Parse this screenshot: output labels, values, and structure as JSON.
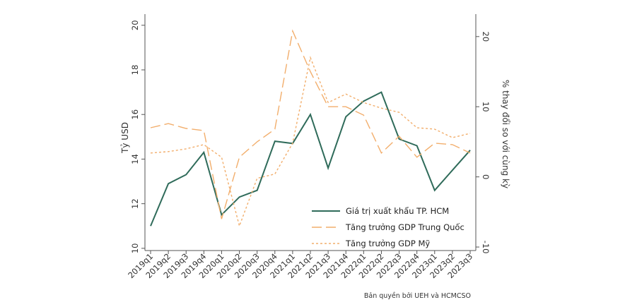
{
  "colors": {
    "hcm": "#2f6b5a",
    "china": "#f2ae6c",
    "us": "#f2ae6c",
    "axis": "#555555",
    "background": "#ffffff"
  },
  "copyright": "Bản quyền bởi UEH và HCMCSO",
  "chart_data": {
    "type": "line",
    "x": [
      "2019q1",
      "2019q2",
      "2019q3",
      "2019q4",
      "2020q1",
      "2020q2",
      "2020q3",
      "2020q4",
      "2021q1",
      "2021q2",
      "2021q3",
      "2021q4",
      "2022q1",
      "2022q2",
      "2022q3",
      "2022q4",
      "2023q1",
      "2023q2",
      "2023q3"
    ],
    "ylabel": "Tỷ USD",
    "y2label": "% thay đổi so với cùng kỳ",
    "ylim": [
      9.9,
      20.5
    ],
    "y2lim": [
      -10.5,
      23.2
    ],
    "yticks": [
      10,
      12,
      14,
      16,
      18,
      20
    ],
    "y2ticks": [
      -10,
      0,
      10,
      20
    ],
    "grid": false,
    "legend_position": "bottom-right",
    "series": [
      {
        "name": "Giá trị xuất khẩu TP. HCM",
        "axis": "left",
        "style": "solid",
        "values": [
          11.0,
          12.9,
          13.3,
          14.3,
          11.5,
          12.3,
          12.6,
          14.8,
          14.7,
          16.0,
          13.6,
          15.9,
          16.6,
          17.0,
          14.9,
          14.6,
          12.6,
          13.5,
          14.4
        ]
      },
      {
        "name": "Tăng trưởng GDP Trung Quốc",
        "axis": "right",
        "style": "long-dash",
        "values": [
          7.0,
          7.6,
          6.9,
          6.6,
          -6.0,
          2.8,
          5.0,
          6.8,
          20.8,
          15.0,
          10.0,
          10.0,
          8.8,
          3.4,
          5.8,
          2.8,
          4.8,
          4.6,
          3.4
        ]
      },
      {
        "name": "Tăng trưởng GDP Mỹ",
        "axis": "right",
        "style": "short-dash",
        "values": [
          3.4,
          3.6,
          4.0,
          4.6,
          2.8,
          -7.0,
          -0.2,
          0.4,
          4.8,
          17.0,
          10.6,
          11.8,
          10.6,
          9.8,
          9.2,
          7.0,
          6.8,
          5.6,
          6.2
        ]
      }
    ]
  }
}
